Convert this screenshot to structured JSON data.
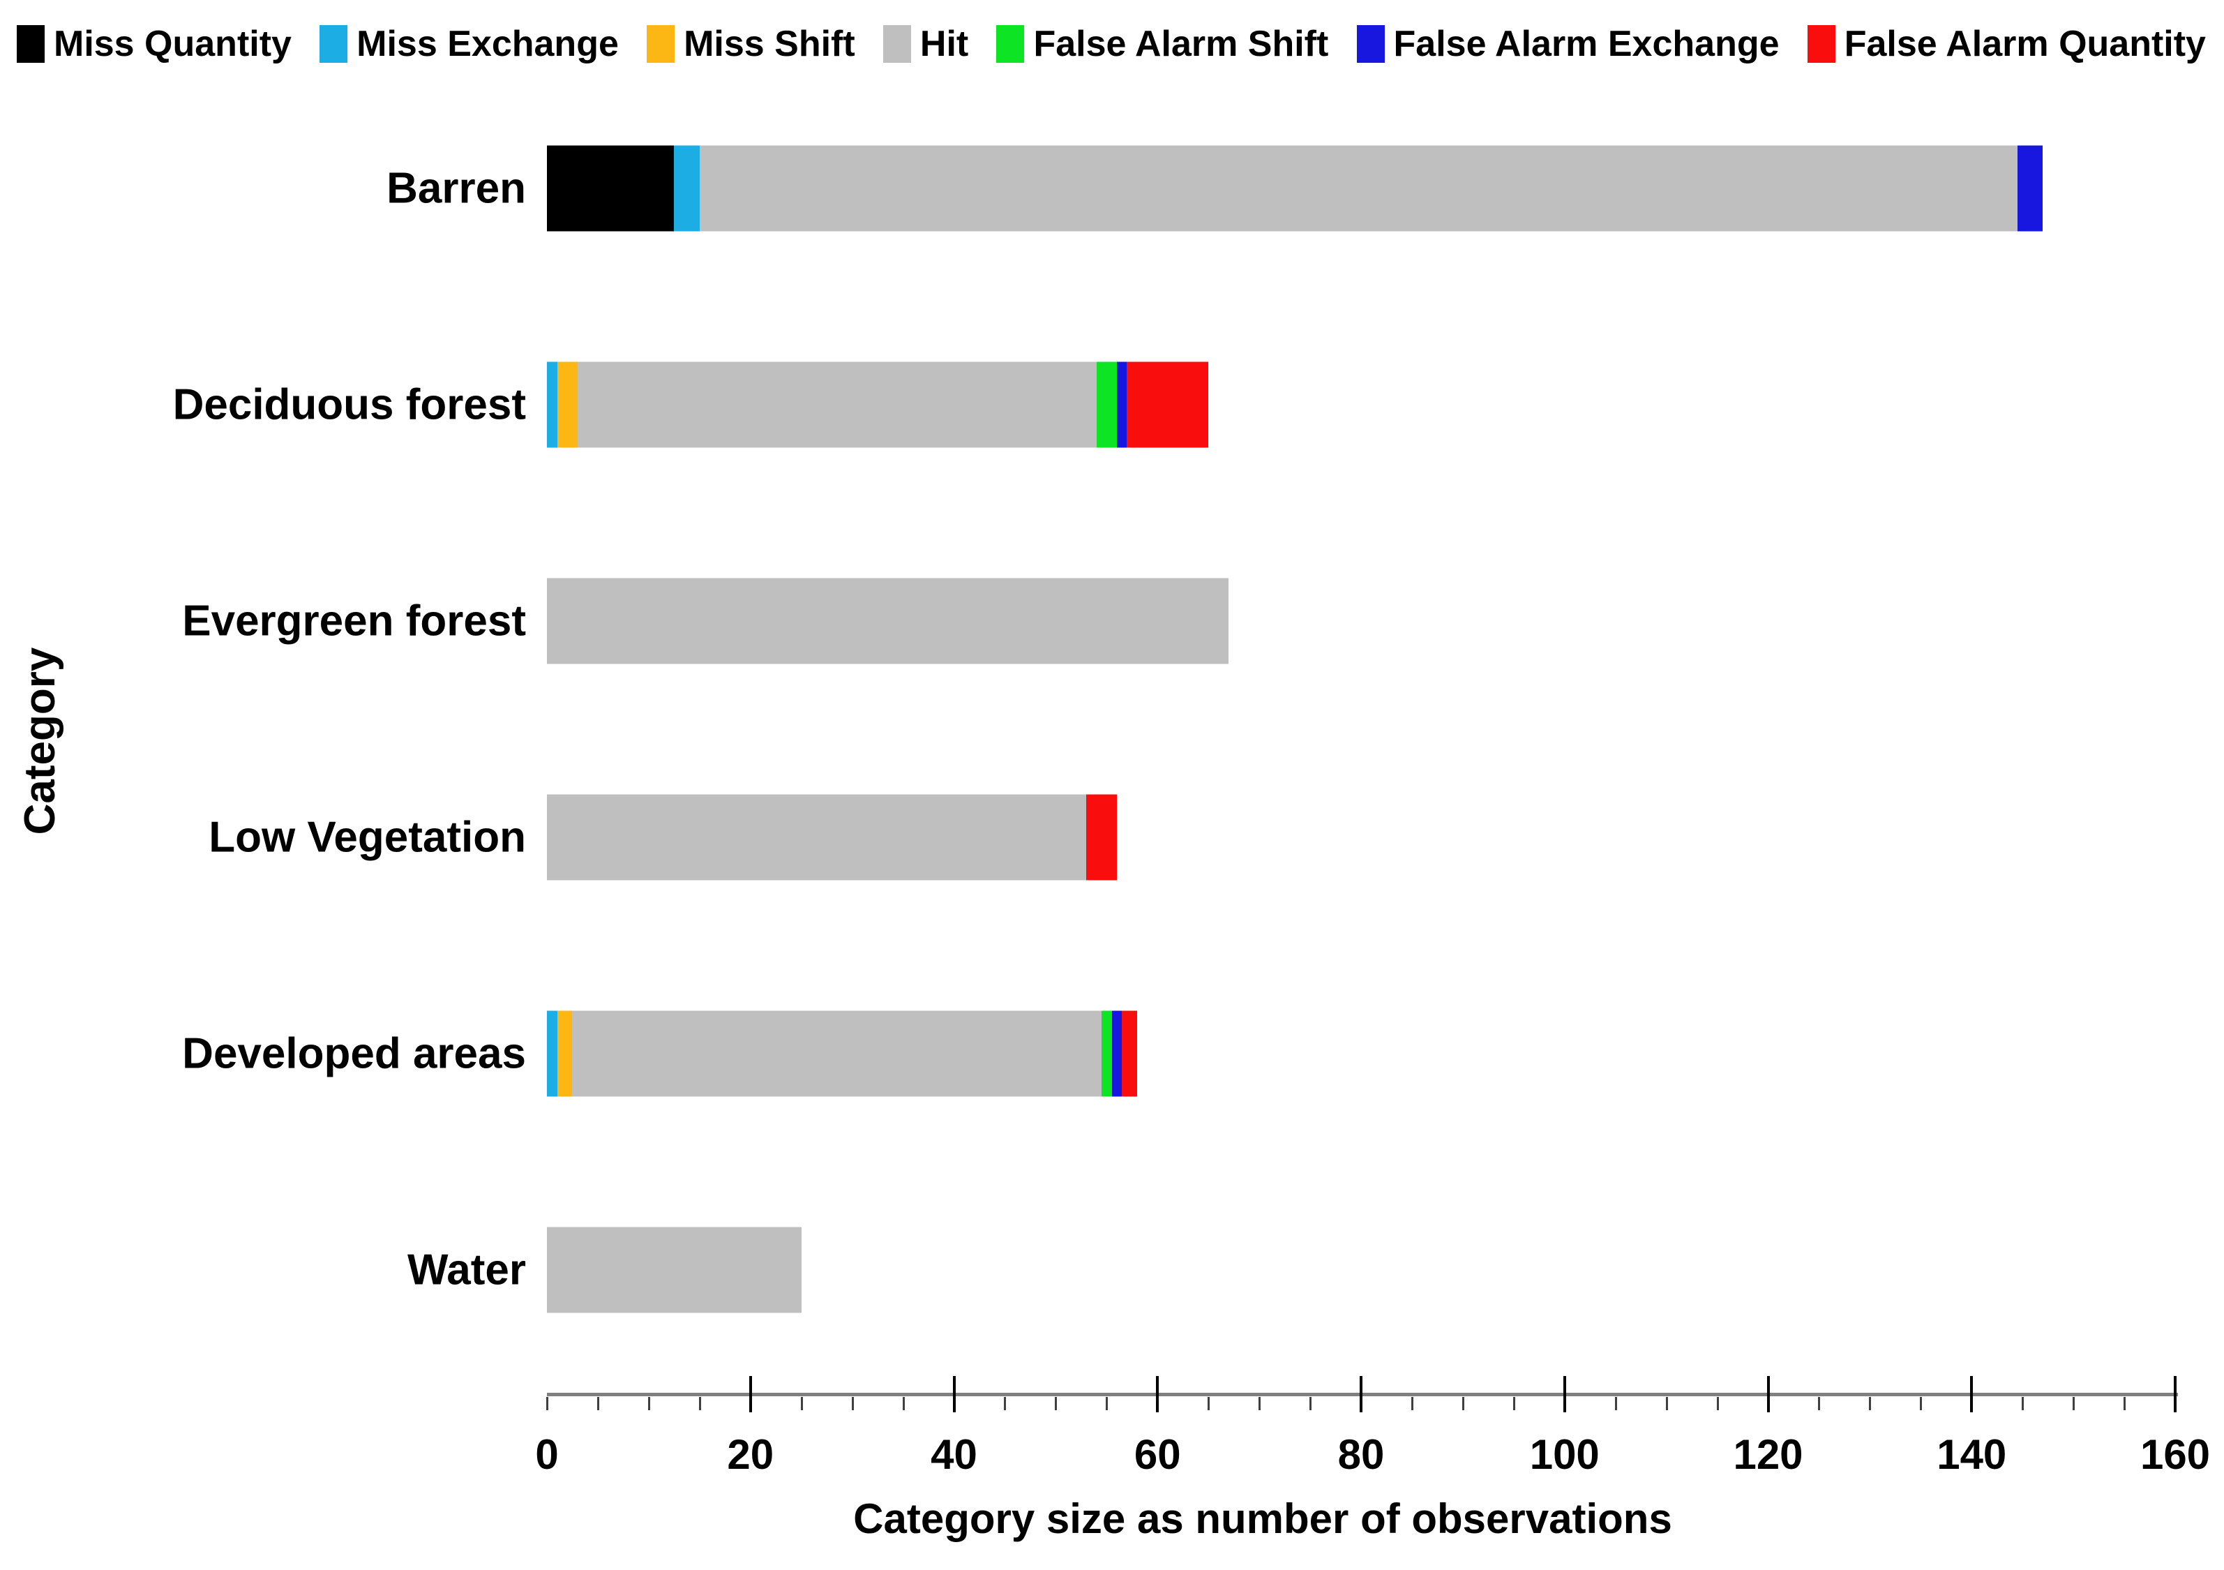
{
  "chart_data": {
    "type": "bar",
    "orientation": "horizontal",
    "stacked": true,
    "title": "",
    "xlabel": "Category size as number of observations",
    "ylabel": "Category",
    "xlim": [
      0,
      160
    ],
    "x_major_tick_step": 20,
    "x_minor_tick_step": 5,
    "x_tick_labels": [
      "0",
      "20",
      "40",
      "60",
      "80",
      "100",
      "120",
      "140",
      "160"
    ],
    "grid": false,
    "legend_position": "top",
    "categories": [
      "Barren",
      "Deciduous forest",
      "Evergreen forest",
      "Low Vegetation",
      "Developed areas",
      "Water"
    ],
    "series": [
      {
        "name": "Miss Quantity",
        "color": "#000000",
        "values": [
          12.5,
          0,
          0,
          0,
          0,
          0
        ]
      },
      {
        "name": "Miss Exchange",
        "color": "#1CADE4",
        "values": [
          2.5,
          1,
          0,
          0,
          1,
          0
        ]
      },
      {
        "name": "Miss Shift",
        "color": "#FDB714",
        "values": [
          0,
          2,
          0,
          0,
          1.5,
          0
        ]
      },
      {
        "name": "Hit",
        "color": "#BFBFBF",
        "values": [
          129.5,
          51,
          67,
          53,
          52,
          25
        ]
      },
      {
        "name": "False Alarm Shift",
        "color": "#0DE423",
        "values": [
          0,
          2,
          0,
          0,
          1,
          0
        ]
      },
      {
        "name": "False Alarm Exchange",
        "color": "#1717DF",
        "values": [
          2.5,
          1,
          0,
          0,
          1,
          0
        ]
      },
      {
        "name": "False Alarm Quantity",
        "color": "#FA0D0D",
        "values": [
          0,
          8,
          0,
          3,
          1.5,
          0
        ]
      }
    ],
    "bar_totals": [
      147,
      65,
      67,
      56,
      58,
      25
    ]
  },
  "axis_style": {
    "line_color": "#7f7f7f",
    "major_tick_color": "#000000",
    "minor_tick_color": "#404040"
  }
}
